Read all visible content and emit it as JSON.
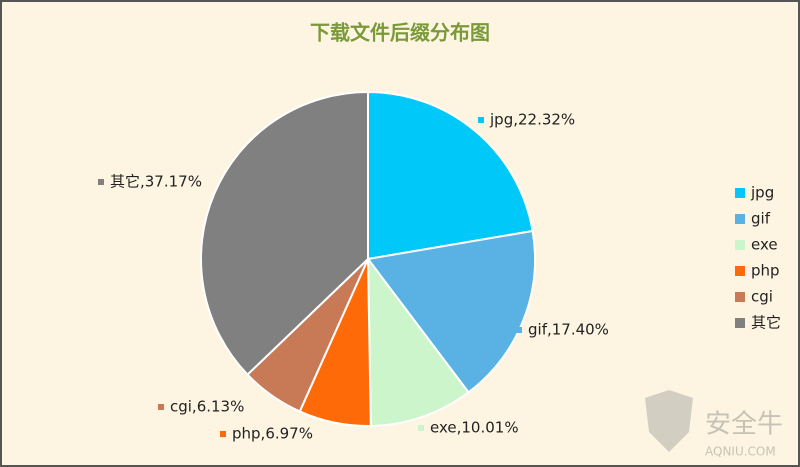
{
  "chart_data": {
    "type": "pie",
    "title": "下载文件后缀分布图",
    "categories": [
      "jpg",
      "gif",
      "exe",
      "php",
      "cgi",
      "其它"
    ],
    "values": [
      22.32,
      17.4,
      10.01,
      6.97,
      6.13,
      37.17
    ],
    "value_labels": [
      "jpg,22.32%",
      "gif,17.40%",
      "exe,10.01%",
      "php,6.97%",
      "cgi,6.13%",
      "其它,37.17%"
    ],
    "colors": [
      "#00c8f8",
      "#5ab2e4",
      "#ccf5cc",
      "#ff6a08",
      "#c87a56",
      "#808080"
    ],
    "legend": "right",
    "watermark": {
      "name": "安全牛",
      "site": "AQNIU.COM"
    }
  }
}
